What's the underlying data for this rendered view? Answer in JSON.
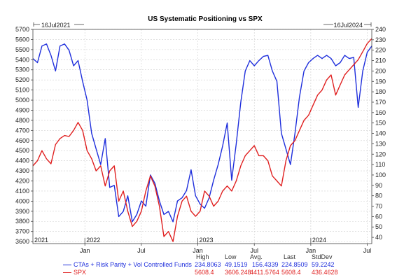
{
  "chart_data": {
    "type": "line",
    "title": "US Systematic Positioning vs SPX",
    "start_label": "16Jul2021",
    "end_label": "16Jul2024",
    "x_range": [
      2021.54,
      2024.54
    ],
    "x_ticks_major": [
      {
        "label": "2021",
        "x": 2021.54
      },
      {
        "label": "2022",
        "x": 2022.0
      },
      {
        "label": "2023",
        "x": 2023.0
      },
      {
        "label": "2024",
        "x": 2024.0
      }
    ],
    "x_ticks_minor": [
      {
        "label": "Jan",
        "x": 2022.0
      },
      {
        "label": "Jul",
        "x": 2022.5
      },
      {
        "label": "Jan",
        "x": 2023.0
      },
      {
        "label": "Jul",
        "x": 2023.5
      },
      {
        "label": "Jan",
        "x": 2024.0
      },
      {
        "label": "Jul",
        "x": 2024.5
      }
    ],
    "y_left": {
      "min": 3580,
      "max": 5700,
      "ticks": [
        3600,
        3700,
        3800,
        3900,
        4000,
        4100,
        4200,
        4300,
        4400,
        4500,
        4600,
        4700,
        4800,
        4900,
        5000,
        5100,
        5200,
        5300,
        5400,
        5500,
        5600,
        5700
      ]
    },
    "y_right": {
      "min": 34,
      "max": 240,
      "ticks": [
        40,
        50,
        60,
        70,
        80,
        90,
        100,
        110,
        120,
        130,
        140,
        150,
        160,
        170,
        180,
        190,
        200,
        210,
        220,
        230,
        240
      ]
    },
    "grid": true,
    "series": [
      {
        "name": "CTAs + Risk Parity + Vol Controlled Funds",
        "color": "#1f2fdc",
        "axis": "right",
        "x": [
          2021.54,
          2021.58,
          2021.62,
          2021.66,
          2021.7,
          2021.74,
          2021.78,
          2021.82,
          2021.86,
          2021.9,
          2021.94,
          2021.98,
          2022.02,
          2022.06,
          2022.1,
          2022.14,
          2022.18,
          2022.22,
          2022.26,
          2022.3,
          2022.34,
          2022.38,
          2022.42,
          2022.46,
          2022.5,
          2022.54,
          2022.58,
          2022.62,
          2022.66,
          2022.7,
          2022.74,
          2022.78,
          2022.82,
          2022.86,
          2022.9,
          2022.94,
          2022.98,
          2023.02,
          2023.06,
          2023.1,
          2023.14,
          2023.18,
          2023.22,
          2023.26,
          2023.3,
          2023.34,
          2023.38,
          2023.42,
          2023.46,
          2023.5,
          2023.54,
          2023.58,
          2023.62,
          2023.66,
          2023.7,
          2023.74,
          2023.78,
          2023.82,
          2023.86,
          2023.9,
          2023.94,
          2023.98,
          2024.02,
          2024.06,
          2024.1,
          2024.14,
          2024.18,
          2024.22,
          2024.26,
          2024.3,
          2024.34,
          2024.38,
          2024.42,
          2024.46,
          2024.5,
          2024.54
        ],
        "y": [
          212,
          208,
          224,
          226,
          215,
          200,
          224,
          226,
          220,
          205,
          210,
          190,
          172,
          140,
          125,
          110,
          135,
          88,
          90,
          60,
          65,
          80,
          55,
          62,
          75,
          70,
          100,
          92,
          75,
          62,
          65,
          55,
          75,
          78,
          85,
          105,
          80,
          72,
          68,
          78,
          95,
          110,
          128,
          150,
          95,
          130,
          170,
          200,
          210,
          205,
          210,
          214,
          215,
          200,
          190,
          140,
          125,
          110,
          140,
          175,
          200,
          208,
          212,
          215,
          212,
          215,
          212,
          205,
          208,
          215,
          212,
          213,
          165,
          200,
          218,
          224
        ]
      },
      {
        "name": "SPX",
        "color": "#e02020",
        "axis": "left",
        "x": [
          2021.54,
          2021.58,
          2021.62,
          2021.66,
          2021.7,
          2021.74,
          2021.78,
          2021.82,
          2021.86,
          2021.9,
          2021.94,
          2021.98,
          2022.02,
          2022.06,
          2022.1,
          2022.14,
          2022.18,
          2022.22,
          2022.26,
          2022.3,
          2022.34,
          2022.38,
          2022.42,
          2022.46,
          2022.5,
          2022.54,
          2022.58,
          2022.62,
          2022.66,
          2022.7,
          2022.74,
          2022.78,
          2022.82,
          2022.86,
          2022.9,
          2022.94,
          2022.98,
          2023.02,
          2023.06,
          2023.1,
          2023.14,
          2023.18,
          2023.22,
          2023.26,
          2023.3,
          2023.34,
          2023.38,
          2023.42,
          2023.46,
          2023.5,
          2023.54,
          2023.58,
          2023.62,
          2023.66,
          2023.7,
          2023.74,
          2023.78,
          2023.82,
          2023.86,
          2023.9,
          2023.94,
          2023.98,
          2024.02,
          2024.06,
          2024.1,
          2024.14,
          2024.18,
          2024.22,
          2024.26,
          2024.3,
          2024.34,
          2024.38,
          2024.42,
          2024.46,
          2024.5,
          2024.54
        ],
        "y": [
          4350,
          4400,
          4500,
          4420,
          4370,
          4560,
          4620,
          4650,
          4640,
          4700,
          4780,
          4700,
          4500,
          4420,
          4300,
          4350,
          4150,
          4300,
          4350,
          4000,
          4100,
          3900,
          3750,
          3800,
          3900,
          4100,
          4250,
          4150,
          3950,
          3650,
          3700,
          3600,
          3850,
          4000,
          4050,
          3900,
          3850,
          3900,
          4100,
          4050,
          3950,
          4000,
          4100,
          4150,
          4100,
          4200,
          4350,
          4450,
          4500,
          4550,
          4450,
          4450,
          4400,
          4250,
          4200,
          4150,
          4400,
          4550,
          4600,
          4700,
          4800,
          4850,
          4950,
          5050,
          5100,
          5200,
          5250,
          5050,
          5150,
          5250,
          5300,
          5350,
          5400,
          5480,
          5560,
          5608.4
        ]
      }
    ],
    "stats": {
      "headers": [
        "High",
        "Low",
        "Avg.",
        "Last",
        "StdDev"
      ],
      "rows": [
        {
          "name": "CTAs + Risk Parity + Vol Controlled Funds",
          "values": [
            "234.8063",
            "49.1519",
            "156.4339",
            "224.8509",
            "59.2242"
          ]
        },
        {
          "name": "SPX",
          "values": [
            "5608.4",
            "3606.248",
            "4411.5764",
            "5608.4",
            "436.4628"
          ]
        }
      ]
    }
  }
}
